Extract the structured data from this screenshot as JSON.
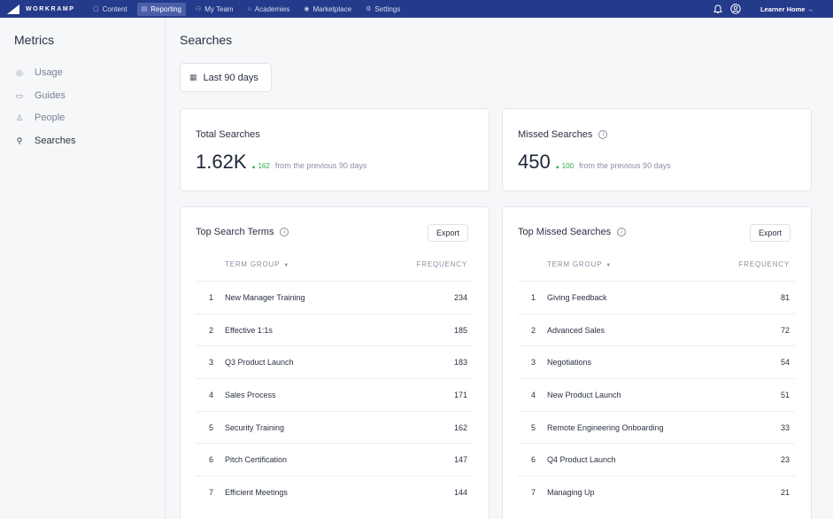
{
  "topnav": {
    "brand": "WORKRAMP",
    "items": [
      {
        "label": "Content",
        "icon": "folder-icon",
        "glyph": "▢",
        "active": false
      },
      {
        "label": "Reporting",
        "icon": "chart-icon",
        "glyph": "▤",
        "active": true
      },
      {
        "label": "My Team",
        "icon": "team-icon",
        "glyph": "⚇",
        "active": false
      },
      {
        "label": "Academies",
        "icon": "academy-icon",
        "glyph": "⌂",
        "active": false
      },
      {
        "label": "Marketplace",
        "icon": "marketplace-icon",
        "glyph": "◉",
        "active": false
      },
      {
        "label": "Settings",
        "icon": "gear-icon",
        "glyph": "⚙",
        "active": false
      }
    ],
    "learner_home": "Learner Home →"
  },
  "sidebar": {
    "title": "Metrics",
    "items": [
      {
        "label": "Usage",
        "icon": "gauge-icon",
        "glyph": "◎",
        "active": false
      },
      {
        "label": "Guides",
        "icon": "book-icon",
        "glyph": "▭",
        "active": false
      },
      {
        "label": "People",
        "icon": "person-icon",
        "glyph": "♙",
        "active": false
      },
      {
        "label": "Searches",
        "icon": "search-icon",
        "glyph": "⚲",
        "active": true
      }
    ]
  },
  "main": {
    "title": "Searches",
    "date_range": "Last 90 days",
    "total": {
      "label": "Total Searches",
      "value": "1.62K",
      "delta": "162",
      "note": "from the previous 90 days"
    },
    "missed": {
      "label": "Missed Searches",
      "value": "450",
      "delta": "100",
      "note": "from the previous 90 days"
    },
    "top_terms": {
      "title": "Top Search Terms",
      "export": "Export",
      "col_term": "TERM GROUP",
      "col_freq": "FREQUENCY",
      "rows": [
        {
          "rank": "1",
          "term": "New Manager Training",
          "freq": "234"
        },
        {
          "rank": "2",
          "term": "Effective 1:1s",
          "freq": "185"
        },
        {
          "rank": "3",
          "term": "Q3 Product Launch",
          "freq": "183"
        },
        {
          "rank": "4",
          "term": "Sales Process",
          "freq": "171"
        },
        {
          "rank": "5",
          "term": "Security Training",
          "freq": "162"
        },
        {
          "rank": "6",
          "term": "Pitch Certification",
          "freq": "147"
        },
        {
          "rank": "7",
          "term": "Efficient Meetings",
          "freq": "144"
        }
      ]
    },
    "top_missed": {
      "title": "Top Missed Searches",
      "export": "Export",
      "col_term": "TERM GROUP",
      "col_freq": "FREQUENCY",
      "rows": [
        {
          "rank": "1",
          "term": "Giving Feedback",
          "freq": "81"
        },
        {
          "rank": "2",
          "term": "Advanced Sales",
          "freq": "72"
        },
        {
          "rank": "3",
          "term": "Negotiations",
          "freq": "54"
        },
        {
          "rank": "4",
          "term": "New Product Launch",
          "freq": "51"
        },
        {
          "rank": "5",
          "term": "Remote Engineering Onboarding",
          "freq": "33"
        },
        {
          "rank": "6",
          "term": "Q4 Product Launch",
          "freq": "23"
        },
        {
          "rank": "7",
          "term": "Managing Up",
          "freq": "21"
        }
      ]
    }
  }
}
